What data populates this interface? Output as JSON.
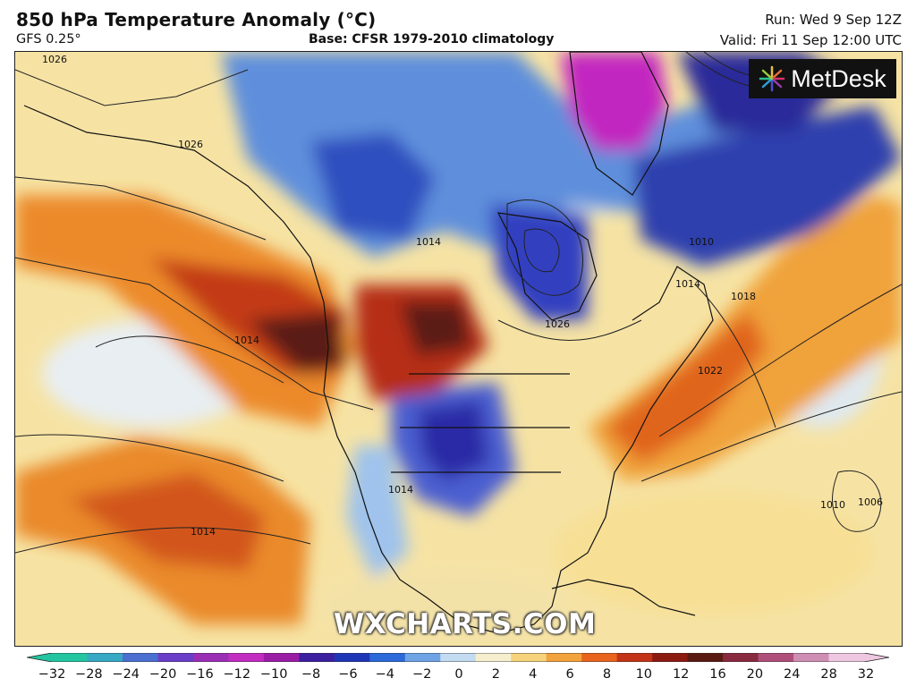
{
  "header": {
    "title": "850 hPa Temperature Anomaly (°C)",
    "model": "GFS 0.25°",
    "base": "Base: CFSR 1979-2010 climatology",
    "run": "Run: Wed 9 Sep 12Z",
    "valid": "Valid: Fri 11 Sep 12:00 UTC"
  },
  "logo": {
    "text": "MetDesk"
  },
  "watermark": "WXCHARTS.COM",
  "isobar_labels": [
    "1026",
    "1026",
    "1014",
    "1014",
    "1026",
    "1010",
    "1014",
    "1018",
    "1022",
    "1014",
    "1010",
    "1006",
    "1014"
  ],
  "colorbar": {
    "ticks": [
      "−32",
      "−28",
      "−24",
      "−20",
      "−16",
      "−12",
      "−10",
      "−8",
      "−6",
      "−4",
      "−2",
      "0",
      "2",
      "4",
      "6",
      "8",
      "10",
      "12",
      "16",
      "20",
      "24",
      "28",
      "32"
    ],
    "colors": [
      "#23c6a0",
      "#38a9c4",
      "#4a6fd0",
      "#6a3ec8",
      "#9a2fb5",
      "#c22cc0",
      "#9b1da5",
      "#3b1fa0",
      "#1f35b8",
      "#2b6ad8",
      "#6ea4e6",
      "#c4dcf2",
      "#f5efcf",
      "#f6d27c",
      "#f3a33d",
      "#e8641f",
      "#c33317",
      "#8d1a10",
      "#5a1a12",
      "#8a2a40",
      "#b0507a",
      "#cf8fb5",
      "#eec7e0"
    ]
  }
}
